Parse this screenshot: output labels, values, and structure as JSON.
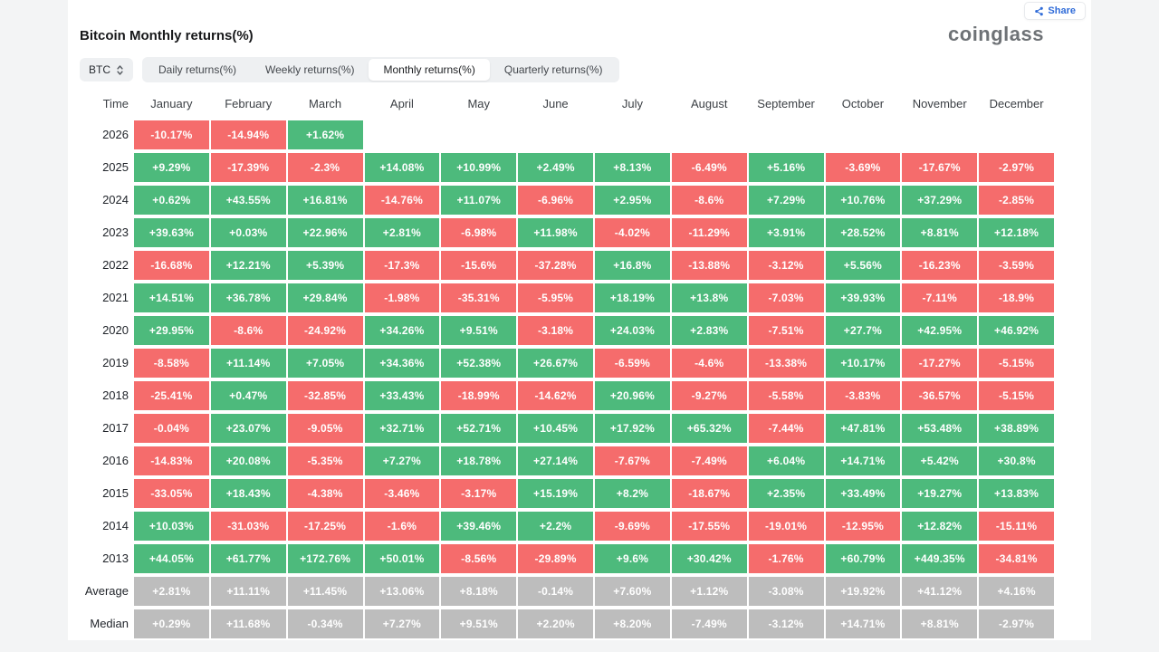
{
  "header": {
    "title": "Bitcoin Monthly returns(%)",
    "share_label": "Share",
    "brand": "coinglass"
  },
  "toolbar": {
    "coin_selected": "BTC",
    "tabs": [
      {
        "label": "Daily returns(%)",
        "active": false
      },
      {
        "label": "Weekly returns(%)",
        "active": false
      },
      {
        "label": "Monthly returns(%)",
        "active": true
      },
      {
        "label": "Quarterly returns(%)",
        "active": false
      }
    ]
  },
  "colors": {
    "positive": "#4dba7c",
    "negative": "#f56c6c",
    "neutral": "#bdbdbd",
    "accent_blue": "#2f6bd8"
  },
  "chart_data": {
    "type": "heatmap",
    "title": "Bitcoin Monthly returns(%)",
    "columns": [
      "Time",
      "January",
      "February",
      "March",
      "April",
      "May",
      "June",
      "July",
      "August",
      "September",
      "October",
      "November",
      "December"
    ],
    "rows": [
      {
        "label": "2026",
        "style": "auto",
        "values": [
          "-10.17%",
          "-14.94%",
          "+1.62%",
          "",
          "",
          "",
          "",
          "",
          "",
          "",
          "",
          ""
        ]
      },
      {
        "label": "2025",
        "style": "auto",
        "values": [
          "+9.29%",
          "-17.39%",
          "-2.3%",
          "+14.08%",
          "+10.99%",
          "+2.49%",
          "+8.13%",
          "-6.49%",
          "+5.16%",
          "-3.69%",
          "-17.67%",
          "-2.97%"
        ]
      },
      {
        "label": "2024",
        "style": "auto",
        "values": [
          "+0.62%",
          "+43.55%",
          "+16.81%",
          "-14.76%",
          "+11.07%",
          "-6.96%",
          "+2.95%",
          "-8.6%",
          "+7.29%",
          "+10.76%",
          "+37.29%",
          "-2.85%"
        ]
      },
      {
        "label": "2023",
        "style": "auto",
        "values": [
          "+39.63%",
          "+0.03%",
          "+22.96%",
          "+2.81%",
          "-6.98%",
          "+11.98%",
          "-4.02%",
          "-11.29%",
          "+3.91%",
          "+28.52%",
          "+8.81%",
          "+12.18%"
        ]
      },
      {
        "label": "2022",
        "style": "auto",
        "values": [
          "-16.68%",
          "+12.21%",
          "+5.39%",
          "-17.3%",
          "-15.6%",
          "-37.28%",
          "+16.8%",
          "-13.88%",
          "-3.12%",
          "+5.56%",
          "-16.23%",
          "-3.59%"
        ]
      },
      {
        "label": "2021",
        "style": "auto",
        "values": [
          "+14.51%",
          "+36.78%",
          "+29.84%",
          "-1.98%",
          "-35.31%",
          "-5.95%",
          "+18.19%",
          "+13.8%",
          "-7.03%",
          "+39.93%",
          "-7.11%",
          "-18.9%"
        ]
      },
      {
        "label": "2020",
        "style": "auto",
        "values": [
          "+29.95%",
          "-8.6%",
          "-24.92%",
          "+34.26%",
          "+9.51%",
          "-3.18%",
          "+24.03%",
          "+2.83%",
          "-7.51%",
          "+27.7%",
          "+42.95%",
          "+46.92%"
        ]
      },
      {
        "label": "2019",
        "style": "auto",
        "values": [
          "-8.58%",
          "+11.14%",
          "+7.05%",
          "+34.36%",
          "+52.38%",
          "+26.67%",
          "-6.59%",
          "-4.6%",
          "-13.38%",
          "+10.17%",
          "-17.27%",
          "-5.15%"
        ]
      },
      {
        "label": "2018",
        "style": "auto",
        "values": [
          "-25.41%",
          "+0.47%",
          "-32.85%",
          "+33.43%",
          "-18.99%",
          "-14.62%",
          "+20.96%",
          "-9.27%",
          "-5.58%",
          "-3.83%",
          "-36.57%",
          "-5.15%"
        ]
      },
      {
        "label": "2017",
        "style": "auto",
        "values": [
          "-0.04%",
          "+23.07%",
          "-9.05%",
          "+32.71%",
          "+52.71%",
          "+10.45%",
          "+17.92%",
          "+65.32%",
          "-7.44%",
          "+47.81%",
          "+53.48%",
          "+38.89%"
        ]
      },
      {
        "label": "2016",
        "style": "auto",
        "values": [
          "-14.83%",
          "+20.08%",
          "-5.35%",
          "+7.27%",
          "+18.78%",
          "+27.14%",
          "-7.67%",
          "-7.49%",
          "+6.04%",
          "+14.71%",
          "+5.42%",
          "+30.8%"
        ]
      },
      {
        "label": "2015",
        "style": "auto",
        "values": [
          "-33.05%",
          "+18.43%",
          "-4.38%",
          "-3.46%",
          "-3.17%",
          "+15.19%",
          "+8.2%",
          "-18.67%",
          "+2.35%",
          "+33.49%",
          "+19.27%",
          "+13.83%"
        ]
      },
      {
        "label": "2014",
        "style": "auto",
        "values": [
          "+10.03%",
          "-31.03%",
          "-17.25%",
          "-1.6%",
          "+39.46%",
          "+2.2%",
          "-9.69%",
          "-17.55%",
          "-19.01%",
          "-12.95%",
          "+12.82%",
          "-15.11%"
        ]
      },
      {
        "label": "2013",
        "style": "auto",
        "values": [
          "+44.05%",
          "+61.77%",
          "+172.76%",
          "+50.01%",
          "-8.56%",
          "-29.89%",
          "+9.6%",
          "+30.42%",
          "-1.76%",
          "+60.79%",
          "+449.35%",
          "-34.81%"
        ]
      },
      {
        "label": "Average",
        "style": "gray",
        "values": [
          "+2.81%",
          "+11.11%",
          "+11.45%",
          "+13.06%",
          "+8.18%",
          "-0.14%",
          "+7.60%",
          "+1.12%",
          "-3.08%",
          "+19.92%",
          "+41.12%",
          "+4.16%"
        ]
      },
      {
        "label": "Median",
        "style": "gray",
        "values": [
          "+0.29%",
          "+11.68%",
          "-0.34%",
          "+7.27%",
          "+9.51%",
          "+2.20%",
          "+8.20%",
          "-7.49%",
          "-3.12%",
          "+14.71%",
          "+8.81%",
          "-2.97%"
        ]
      }
    ]
  }
}
